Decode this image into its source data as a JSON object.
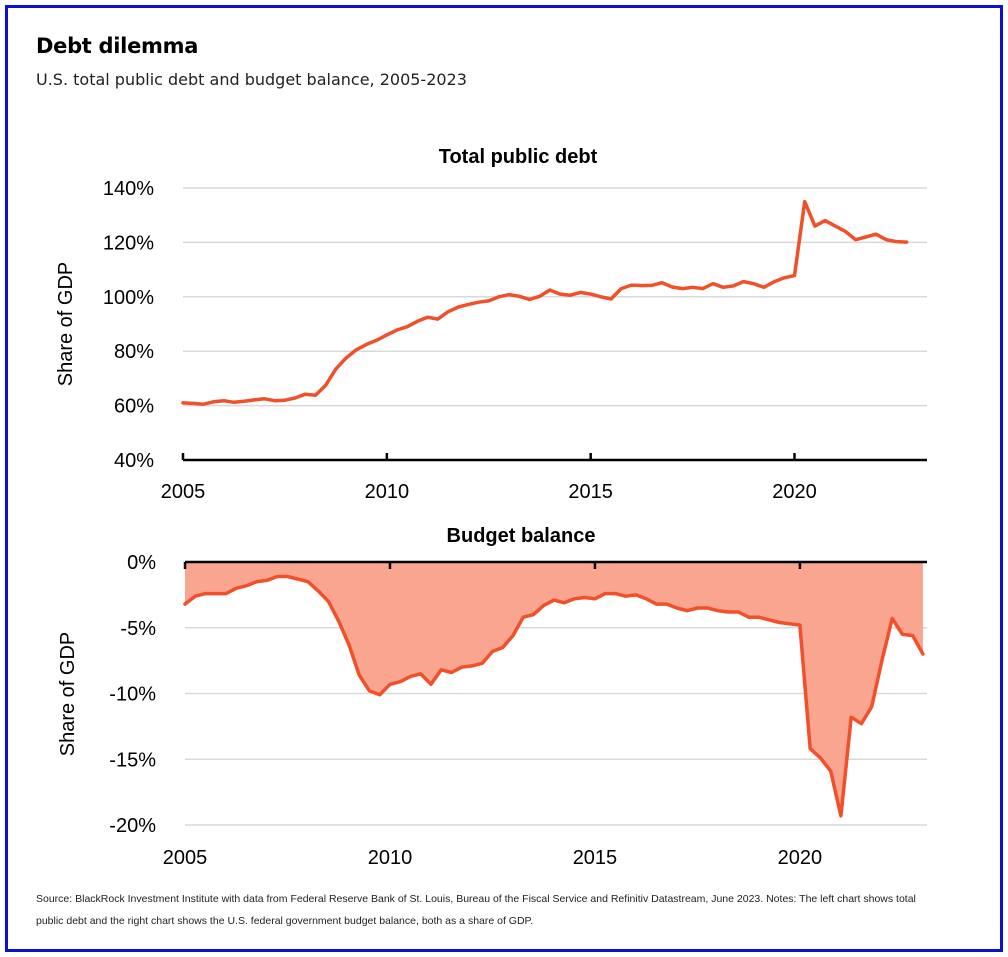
{
  "header": {
    "title": "Debt dilemma",
    "subtitle": "U.S. total public debt and budget balance, 2005-2023"
  },
  "footer": {
    "source": "Source: BlackRock Investment Institute with data from Federal Reserve Bank of St. Louis, Bureau of the Fiscal Service and Refinitiv Datastream, June 2023. Notes: The left chart shows total public debt and the right chart shows the U.S. federal government budget balance, both as a share of GDP."
  },
  "colors": {
    "line": "#f0502a",
    "fill": "#f9a58f",
    "grid": "#d9d9d9",
    "axis": "#000000",
    "border": "#0a10d6"
  },
  "chart_data": [
    {
      "type": "line",
      "title": "Total public debt",
      "xlabel": "",
      "ylabel": "Share of GDP",
      "xlim": [
        2005,
        2023.25
      ],
      "ylim": [
        40,
        140
      ],
      "yticks": [
        40,
        60,
        80,
        100,
        120,
        140
      ],
      "ytick_labels": [
        "40%",
        "60%",
        "80%",
        "100%",
        "120%",
        "140%"
      ],
      "xticks": [
        2005,
        2010,
        2015,
        2020
      ],
      "xtick_labels": [
        "2005",
        "2010",
        "2015",
        "2020"
      ],
      "grid": true,
      "series": [
        {
          "name": "Total public debt",
          "x": [
            2005.0,
            2005.25,
            2005.5,
            2005.75,
            2006.0,
            2006.25,
            2006.5,
            2006.75,
            2007.0,
            2007.25,
            2007.5,
            2007.75,
            2008.0,
            2008.25,
            2008.5,
            2008.75,
            2009.0,
            2009.25,
            2009.5,
            2009.75,
            2010.0,
            2010.25,
            2010.5,
            2010.75,
            2011.0,
            2011.25,
            2011.5,
            2011.75,
            2012.0,
            2012.25,
            2012.5,
            2012.75,
            2013.0,
            2013.25,
            2013.5,
            2013.75,
            2014.0,
            2014.25,
            2014.5,
            2014.75,
            2015.0,
            2015.25,
            2015.5,
            2015.75,
            2016.0,
            2016.25,
            2016.5,
            2016.75,
            2017.0,
            2017.25,
            2017.5,
            2017.75,
            2018.0,
            2018.25,
            2018.5,
            2018.75,
            2019.0,
            2019.25,
            2019.5,
            2019.75,
            2020.0,
            2020.25,
            2020.5,
            2020.75,
            2021.0,
            2021.25,
            2021.5,
            2021.75,
            2022.0,
            2022.25,
            2022.5,
            2022.75
          ],
          "values": [
            61.0,
            60.8,
            60.5,
            61.4,
            61.8,
            61.2,
            61.6,
            62.1,
            62.5,
            61.8,
            62.0,
            62.8,
            64.2,
            63.8,
            67.5,
            73.5,
            77.5,
            80.5,
            82.5,
            84.0,
            86.0,
            87.8,
            89.0,
            91.0,
            92.5,
            91.8,
            94.5,
            96.2,
            97.2,
            98.0,
            98.5,
            100.0,
            100.8,
            100.2,
            99.0,
            100.2,
            102.5,
            101.0,
            100.6,
            101.6,
            101.0,
            100.0,
            99.2,
            103.0,
            104.3,
            104.1,
            104.2,
            105.2,
            103.6,
            103.0,
            103.5,
            103.0,
            104.8,
            103.5,
            104.0,
            105.6,
            104.8,
            103.5,
            105.5,
            107.0,
            107.8,
            135.0,
            126.0,
            128.0,
            126.0,
            124.0,
            121.0,
            122.0,
            123.0,
            121.0,
            120.3,
            120.1
          ]
        }
      ]
    },
    {
      "type": "area",
      "title": "Budget balance",
      "xlabel": "",
      "ylabel": "Share of GDP",
      "xlim": [
        2005,
        2023.1
      ],
      "ylim": [
        -20,
        0
      ],
      "yticks": [
        0,
        -5,
        -10,
        -15,
        -20
      ],
      "ytick_labels": [
        "0%",
        "-5%",
        "-10%",
        "-15%",
        "-20%"
      ],
      "xticks": [
        2005,
        2010,
        2015,
        2020
      ],
      "xtick_labels": [
        "2005",
        "2010",
        "2015",
        "2020"
      ],
      "grid": true,
      "series": [
        {
          "name": "Budget balance",
          "x": [
            2005.0,
            2005.25,
            2005.5,
            2005.75,
            2006.0,
            2006.25,
            2006.5,
            2006.75,
            2007.0,
            2007.25,
            2007.5,
            2007.75,
            2008.0,
            2008.25,
            2008.5,
            2008.75,
            2009.0,
            2009.25,
            2009.5,
            2009.75,
            2010.0,
            2010.25,
            2010.5,
            2010.75,
            2011.0,
            2011.25,
            2011.5,
            2011.75,
            2012.0,
            2012.25,
            2012.5,
            2012.75,
            2013.0,
            2013.25,
            2013.5,
            2013.75,
            2014.0,
            2014.25,
            2014.5,
            2014.75,
            2015.0,
            2015.25,
            2015.5,
            2015.75,
            2016.0,
            2016.25,
            2016.5,
            2016.75,
            2017.0,
            2017.25,
            2017.5,
            2017.75,
            2018.0,
            2018.25,
            2018.5,
            2018.75,
            2019.0,
            2019.25,
            2019.5,
            2019.75,
            2020.0,
            2020.25,
            2020.5,
            2020.75,
            2021.0,
            2021.25,
            2021.5,
            2021.75,
            2022.0,
            2022.25,
            2022.5,
            2022.75,
            2023.0
          ],
          "values": [
            -3.2,
            -2.6,
            -2.4,
            -2.4,
            -2.4,
            -2.0,
            -1.8,
            -1.5,
            -1.4,
            -1.1,
            -1.1,
            -1.3,
            -1.5,
            -2.2,
            -3.0,
            -4.5,
            -6.3,
            -8.6,
            -9.8,
            -10.1,
            -9.3,
            -9.1,
            -8.7,
            -8.5,
            -9.3,
            -8.2,
            -8.4,
            -8.0,
            -7.9,
            -7.7,
            -6.8,
            -6.5,
            -5.6,
            -4.2,
            -4.0,
            -3.3,
            -2.9,
            -3.1,
            -2.8,
            -2.7,
            -2.8,
            -2.4,
            -2.4,
            -2.6,
            -2.5,
            -2.8,
            -3.2,
            -3.2,
            -3.5,
            -3.7,
            -3.5,
            -3.5,
            -3.7,
            -3.8,
            -3.8,
            -4.2,
            -4.2,
            -4.4,
            -4.6,
            -4.7,
            -4.8,
            -14.2,
            -14.9,
            -15.9,
            -19.3,
            -11.8,
            -12.3,
            -11.0,
            -7.5,
            -4.3,
            -5.5,
            -5.6,
            -7.0
          ]
        }
      ]
    }
  ]
}
